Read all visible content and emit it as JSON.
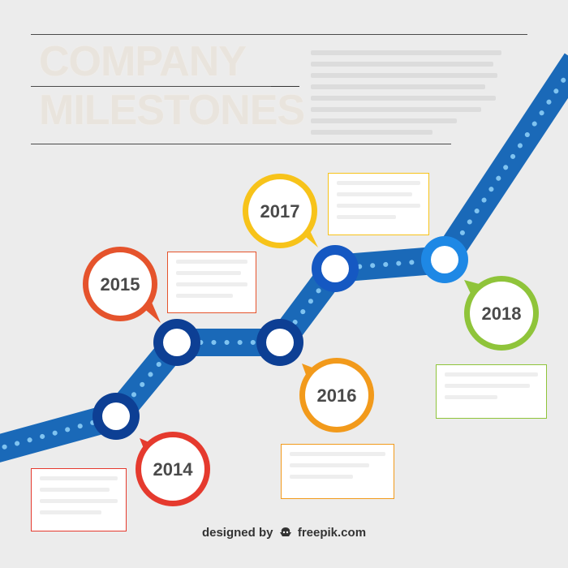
{
  "header": {
    "title_line1": "COMPANY",
    "title_line2": "MILESTONES"
  },
  "milestones": [
    {
      "year": "2014",
      "color": "#e53a2e"
    },
    {
      "year": "2015",
      "color": "#e5532c"
    },
    {
      "year": "2016",
      "color": "#f29a1b"
    },
    {
      "year": "2017",
      "color": "#f7c31a"
    },
    {
      "year": "2018",
      "color": "#8fc43a"
    }
  ],
  "colors": {
    "road": "#1a69b8",
    "road_dark": "#0d3f94",
    "background": "#ececec"
  },
  "footer": {
    "designed_by": "designed by",
    "brand": "freepik.com",
    "brand_icon": "freepik-logo-icon"
  }
}
